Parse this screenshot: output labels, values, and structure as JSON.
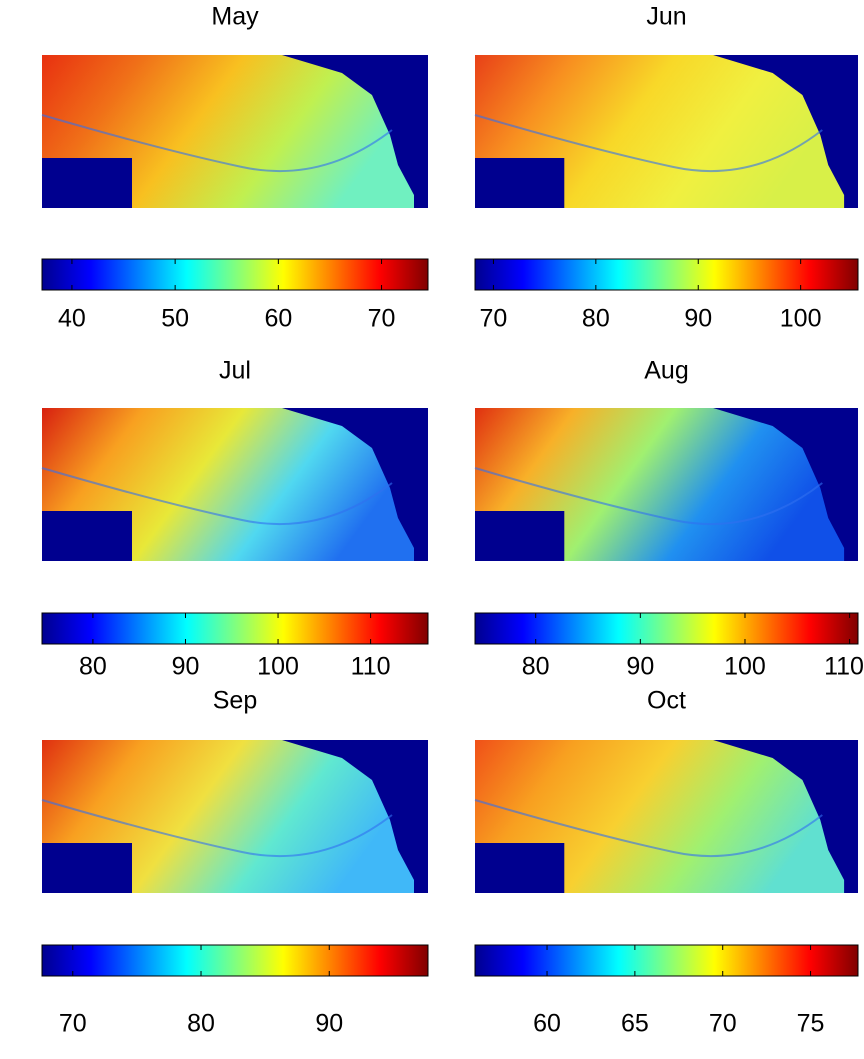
{
  "chart_data": [
    {
      "type": "map",
      "title": "May",
      "clim": [
        37.1,
        74.5
      ],
      "cticks": [
        40,
        50,
        60,
        70
      ],
      "colormap": "jet"
    },
    {
      "type": "map",
      "title": "Jun",
      "clim": [
        68.2,
        105.6
      ],
      "cticks": [
        70,
        80,
        90,
        100
      ],
      "colormap": "jet"
    },
    {
      "type": "map",
      "title": "Jul",
      "clim": [
        74.5,
        116.2
      ],
      "cticks": [
        80,
        90,
        100,
        110
      ],
      "colormap": "jet"
    },
    {
      "type": "map",
      "title": "Aug",
      "clim": [
        74.2,
        110.8
      ],
      "cticks": [
        80,
        90,
        100,
        110
      ],
      "colormap": "jet"
    },
    {
      "type": "map",
      "title": "Sep",
      "clim": [
        67.6,
        97.7
      ],
      "cticks": [
        70,
        80,
        90
      ],
      "colormap": "jet"
    },
    {
      "type": "map",
      "title": "Oct",
      "clim": [
        55.9,
        77.7
      ],
      "cticks": [
        60,
        65,
        70,
        75
      ],
      "colormap": "jet"
    }
  ]
}
